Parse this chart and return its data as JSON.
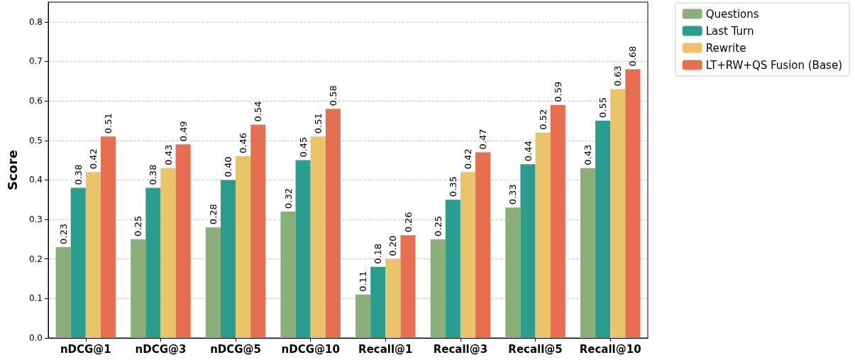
{
  "chart_data": {
    "type": "bar",
    "ylabel": "Score",
    "categories": [
      "nDCG@1",
      "nDCG@3",
      "nDCG@5",
      "nDCG@10",
      "Recall@1",
      "Recall@3",
      "Recall@5",
      "Recall@10"
    ],
    "series": [
      {
        "name": "Questions",
        "color": "#8aaf7a",
        "values": [
          0.23,
          0.25,
          0.28,
          0.32,
          0.11,
          0.25,
          0.33,
          0.43
        ],
        "value_labels": [
          "0.23",
          "0.25",
          "0.28",
          "0.32",
          "0.11",
          "0.25",
          "0.33",
          "0.43"
        ]
      },
      {
        "name": "Last Turn",
        "color": "#2a9d8f",
        "values": [
          0.38,
          0.38,
          0.4,
          0.45,
          0.18,
          0.35,
          0.44,
          0.55
        ],
        "value_labels": [
          "0.38",
          "0.38",
          "0.40",
          "0.45",
          "0.18",
          "0.35",
          "0.44",
          "0.55"
        ]
      },
      {
        "name": "Rewrite",
        "color": "#e9c46a",
        "values": [
          0.42,
          0.43,
          0.46,
          0.51,
          0.2,
          0.42,
          0.52,
          0.63
        ],
        "value_labels": [
          "0.42",
          "0.43",
          "0.46",
          "0.51",
          "0.20",
          "0.42",
          "0.52",
          "0.63"
        ]
      },
      {
        "name": "LT+RW+QS Fusion (Base)",
        "color": "#e76f51",
        "values": [
          0.51,
          0.49,
          0.54,
          0.58,
          0.26,
          0.47,
          0.59,
          0.68
        ],
        "value_labels": [
          "0.51",
          "0.49",
          "0.54",
          "0.58",
          "0.26",
          "0.47",
          "0.59",
          "0.68"
        ]
      }
    ],
    "ylim": [
      0,
      0.85
    ],
    "yticks": [
      {
        "value": 0,
        "label": "0.0"
      },
      {
        "value": 0.1,
        "label": "0.1"
      },
      {
        "value": 0.2,
        "label": "0.2"
      },
      {
        "value": 0.3,
        "label": "0.3"
      },
      {
        "value": 0.4,
        "label": "0.4"
      },
      {
        "value": 0.5,
        "label": "0.5"
      },
      {
        "value": 0.6,
        "label": "0.6"
      },
      {
        "value": 0.7,
        "label": "0.7"
      },
      {
        "value": 0.8,
        "label": "0.8"
      }
    ],
    "grid": "y",
    "legend": "top right"
  }
}
